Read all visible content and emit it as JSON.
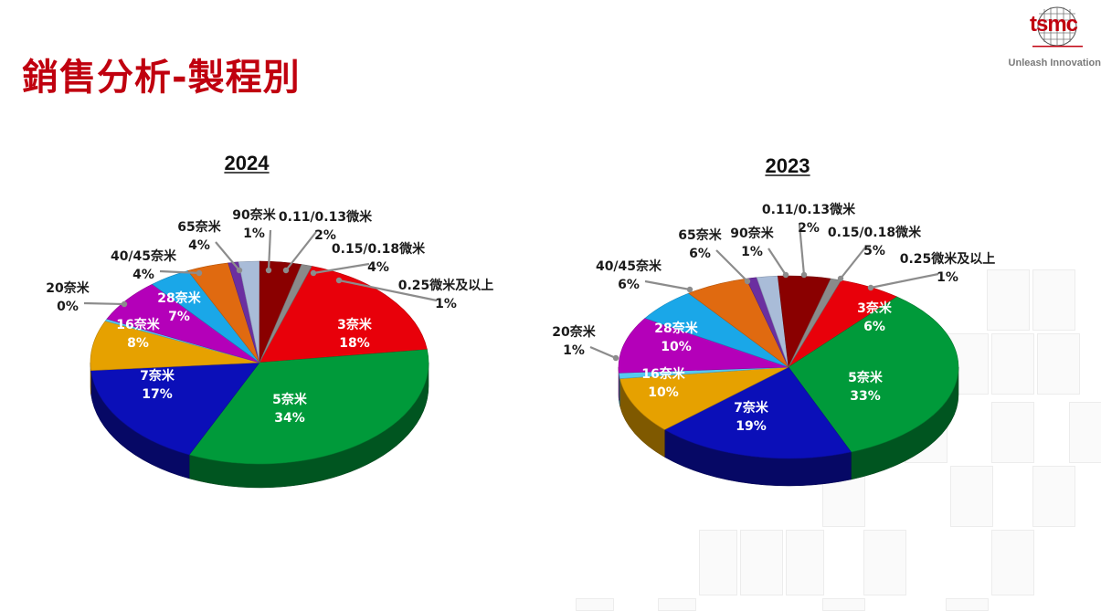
{
  "page": {
    "title": "銷售分析-製程別",
    "logo_text": "tsmc",
    "logo_tagline": "Unleash Innovation"
  },
  "colors": {
    "title_red": "#c0000f",
    "3nm": "#e8000a",
    "5nm": "#009a3a",
    "7nm": "#0b0fb8",
    "16nm": "#e6a100",
    "20nm": "#56c8f0",
    "28nm": "#b400b9",
    "40_45nm": "#1aa7e8",
    "65nm": "#e06a10",
    "90nm": "#6b2fa0",
    "0.11_0.13um": "#a9bcd8",
    "0.15_0.18um": "#8a0000",
    "0.25um_above": "#8a8a8a"
  },
  "chart_data": [
    {
      "type": "pie",
      "title": "2024",
      "slices": [
        {
          "key": "3nm",
          "label": "3奈米",
          "value": 18,
          "pct": "18%"
        },
        {
          "key": "5nm",
          "label": "5奈米",
          "value": 34,
          "pct": "34%"
        },
        {
          "key": "7nm",
          "label": "7奈米",
          "value": 17,
          "pct": "17%"
        },
        {
          "key": "16nm",
          "label": "16奈米",
          "value": 8,
          "pct": "8%"
        },
        {
          "key": "20nm",
          "label": "20奈米",
          "value": 0,
          "pct": "0%"
        },
        {
          "key": "28nm",
          "label": "28奈米",
          "value": 7,
          "pct": "7%"
        },
        {
          "key": "40_45nm",
          "label": "40/45奈米",
          "value": 4,
          "pct": "4%"
        },
        {
          "key": "65nm",
          "label": "65奈米",
          "value": 4,
          "pct": "4%"
        },
        {
          "key": "90nm",
          "label": "90奈米",
          "value": 1,
          "pct": "1%"
        },
        {
          "key": "0.11_0.13um",
          "label": "0.11/0.13微米",
          "value": 2,
          "pct": "2%"
        },
        {
          "key": "0.15_0.18um",
          "label": "0.15/0.18微米",
          "value": 4,
          "pct": "4%"
        },
        {
          "key": "0.25um_above",
          "label": "0.25微米及以上",
          "value": 1,
          "pct": "1%"
        }
      ]
    },
    {
      "type": "pie",
      "title": "2023",
      "slices": [
        {
          "key": "3nm",
          "label": "3奈米",
          "value": 6,
          "pct": "6%"
        },
        {
          "key": "5nm",
          "label": "5奈米",
          "value": 33,
          "pct": "33%"
        },
        {
          "key": "7nm",
          "label": "7奈米",
          "value": 19,
          "pct": "19%"
        },
        {
          "key": "16nm",
          "label": "16奈米",
          "value": 10,
          "pct": "10%"
        },
        {
          "key": "20nm",
          "label": "20奈米",
          "value": 1,
          "pct": "1%"
        },
        {
          "key": "28nm",
          "label": "28奈米",
          "value": 10,
          "pct": "10%"
        },
        {
          "key": "40_45nm",
          "label": "40/45奈米",
          "value": 6,
          "pct": "6%"
        },
        {
          "key": "65nm",
          "label": "65奈米",
          "value": 6,
          "pct": "6%"
        },
        {
          "key": "90nm",
          "label": "90奈米",
          "value": 1,
          "pct": "1%"
        },
        {
          "key": "0.11_0.13um",
          "label": "0.11/0.13微米",
          "value": 2,
          "pct": "2%"
        },
        {
          "key": "0.15_0.18um",
          "label": "0.15/0.18微米",
          "value": 5,
          "pct": "5%"
        },
        {
          "key": "0.25um_above",
          "label": "0.25微米及以上",
          "value": 1,
          "pct": "1%"
        }
      ]
    }
  ]
}
